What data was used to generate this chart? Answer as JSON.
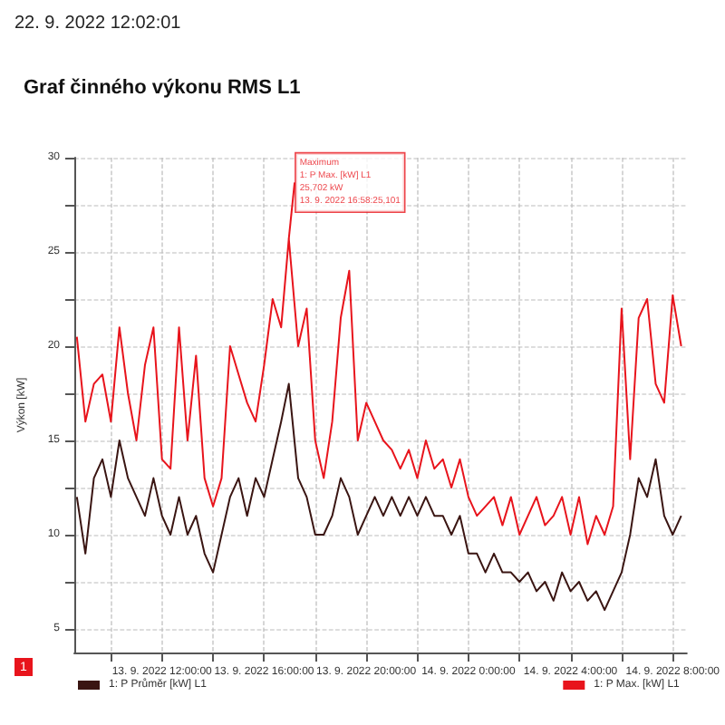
{
  "chart_data": {
    "type": "line",
    "title": "Graf činného výkonu RMS L1",
    "ylabel": "Výkon [kW]",
    "annotations": [
      "22. 9. 2022 12:02:01",
      "1",
      {
        "text": "Maximum\n1: P Max. [kW] L1\n25,702 kW\n13. 9. 2022 16:58:25,101",
        "x": "2022-09-13T16:58",
        "y": 25.702
      }
    ],
    "x": [
      "2022-09-13T08:40",
      "2022-09-13T09:00",
      "2022-09-13T09:20",
      "2022-09-13T09:40",
      "2022-09-13T10:00",
      "2022-09-13T10:20",
      "2022-09-13T10:40",
      "2022-09-13T11:00",
      "2022-09-13T11:20",
      "2022-09-13T11:40",
      "2022-09-13T12:00",
      "2022-09-13T12:20",
      "2022-09-13T12:40",
      "2022-09-13T13:00",
      "2022-09-13T13:20",
      "2022-09-13T13:40",
      "2022-09-13T14:00",
      "2022-09-13T14:20",
      "2022-09-13T14:40",
      "2022-09-13T15:00",
      "2022-09-13T15:20",
      "2022-09-13T15:40",
      "2022-09-13T16:00",
      "2022-09-13T16:20",
      "2022-09-13T16:40",
      "2022-09-13T16:58",
      "2022-09-13T17:20",
      "2022-09-13T17:40",
      "2022-09-13T18:00",
      "2022-09-13T18:20",
      "2022-09-13T18:40",
      "2022-09-13T19:00",
      "2022-09-13T19:20",
      "2022-09-13T19:40",
      "2022-09-13T20:00",
      "2022-09-13T20:20",
      "2022-09-13T20:40",
      "2022-09-13T21:00",
      "2022-09-13T21:20",
      "2022-09-13T21:40",
      "2022-09-13T22:00",
      "2022-09-13T22:20",
      "2022-09-13T22:40",
      "2022-09-13T23:00",
      "2022-09-13T23:20",
      "2022-09-13T23:40",
      "2022-09-14T00:00",
      "2022-09-14T00:20",
      "2022-09-14T00:40",
      "2022-09-14T01:00",
      "2022-09-14T01:20",
      "2022-09-14T01:40",
      "2022-09-14T02:00",
      "2022-09-14T02:20",
      "2022-09-14T02:40",
      "2022-09-14T03:00",
      "2022-09-14T03:20",
      "2022-09-14T03:40",
      "2022-09-14T04:00",
      "2022-09-14T04:20",
      "2022-09-14T04:40",
      "2022-09-14T05:00",
      "2022-09-14T05:20",
      "2022-09-14T05:40",
      "2022-09-14T06:00",
      "2022-09-14T06:20",
      "2022-09-14T06:40",
      "2022-09-14T07:00",
      "2022-09-14T07:20",
      "2022-09-14T07:40",
      "2022-09-14T08:00",
      "2022-09-14T08:20"
    ],
    "series": [
      {
        "name": "1: P Průměr [kW] L1",
        "color": "#3a1512",
        "values": [
          12,
          9,
          13,
          14,
          12,
          15,
          13,
          12,
          11,
          13,
          11,
          10,
          12,
          10,
          11,
          9,
          8,
          10,
          12,
          13,
          11,
          13,
          12,
          14,
          16,
          18,
          13,
          12,
          10,
          10,
          11,
          13,
          12,
          10,
          11,
          12,
          11,
          12,
          11,
          12,
          11,
          12,
          11,
          11,
          10,
          11,
          9,
          9,
          8,
          9,
          8,
          8,
          7.5,
          8,
          7,
          7.5,
          6.5,
          8,
          7,
          7.5,
          6.5,
          7,
          6,
          7,
          8,
          10,
          13,
          12,
          14,
          11,
          10,
          11
        ]
      },
      {
        "name": "1: P Max. [kW] L1",
        "color": "#e8141c",
        "values": [
          20.5,
          16,
          18,
          18.5,
          16,
          21,
          17.5,
          15,
          19,
          21,
          14,
          13.5,
          21,
          15,
          19.5,
          13,
          11.5,
          13,
          20,
          18.5,
          17,
          16,
          19,
          22.5,
          21,
          25.702,
          20,
          22,
          15,
          13,
          16,
          21.5,
          24,
          15,
          17,
          16,
          15,
          14.5,
          13.5,
          14.5,
          13,
          15,
          13.5,
          14,
          12.5,
          14,
          12,
          11,
          11.5,
          12,
          10.5,
          12,
          10,
          11,
          12,
          10.5,
          11,
          12,
          10,
          12,
          9.5,
          11,
          10,
          11.5,
          22,
          14,
          21.5,
          22.5,
          18,
          17,
          22.7,
          20
        ]
      }
    ],
    "xlim": [
      "2022-09-13T08:34",
      "2022-09-14T08:33"
    ],
    "xticks": [
      {
        "value": "2022-09-13T10:00",
        "label": null
      },
      {
        "value": "2022-09-13T12:00",
        "label": "13. 9. 2022 12:00:00"
      },
      {
        "value": "2022-09-13T14:00",
        "label": null
      },
      {
        "value": "2022-09-13T16:00",
        "label": "13. 9. 2022 16:00:00"
      },
      {
        "value": "2022-09-13T18:00",
        "label": null
      },
      {
        "value": "2022-09-13T20:00",
        "label": "13. 9. 2022 20:00:00"
      },
      {
        "value": "2022-09-13T22:00",
        "label": null
      },
      {
        "value": "2022-09-14T00:00",
        "label": "14. 9. 2022 0:00:00"
      },
      {
        "value": "2022-09-14T02:00",
        "label": null
      },
      {
        "value": "2022-09-14T04:00",
        "label": "14. 9. 2022 4:00:00"
      },
      {
        "value": "2022-09-14T06:00",
        "label": null
      },
      {
        "value": "2022-09-14T08:00",
        "label": "14. 9. 2022 8:00:00"
      }
    ],
    "ylim": [
      3.75,
      30
    ],
    "yticks": [
      5,
      {
        "value": 7.5,
        "label": null
      },
      10,
      {
        "value": 12.5,
        "label": null
      },
      15,
      {
        "value": 17.5,
        "label": null
      },
      20,
      {
        "value": 22.5,
        "label": null
      },
      25,
      {
        "value": 27.5,
        "label": null
      },
      30
    ],
    "grid": true,
    "legend": "bottom",
    "marker": "none",
    "line_style": "solid"
  }
}
